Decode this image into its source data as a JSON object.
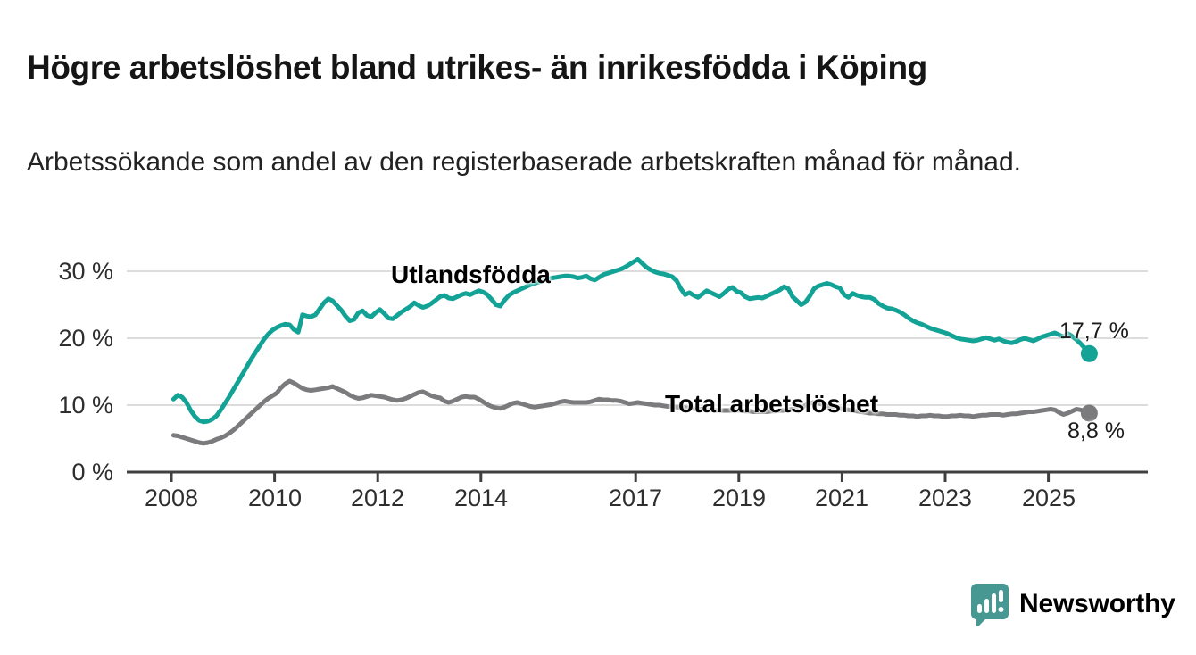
{
  "header": {
    "title": "Högre arbetslöshet bland utrikes- än inrikesfödda i Köping",
    "subtitle": "Arbetssökande som andel av den registerbaserade arbetskraften månad för månad."
  },
  "branding": {
    "logo_text": "Newsworthy",
    "color": "#4a9c96",
    "icon": "speech-bubble-bar-chart"
  },
  "chart_data": {
    "type": "line",
    "title": "Högre arbetslöshet bland utrikes- än inrikesfödda i Köping",
    "x_unit": "month",
    "start": "2008-01",
    "end": "2025-10",
    "grid": "horizontal",
    "y_axis": {
      "min": 0,
      "max": 33,
      "ticks": [
        {
          "label": "0 %",
          "value": 0
        },
        {
          "label": "10 %",
          "value": 10
        },
        {
          "label": "20 %",
          "value": 20
        },
        {
          "label": "30 %",
          "value": 30
        }
      ]
    },
    "x_axis": {
      "ticks": [
        {
          "label": "2008",
          "year": 2008
        },
        {
          "label": "2010",
          "year": 2010
        },
        {
          "label": "2012",
          "year": 2012
        },
        {
          "label": "2014",
          "year": 2014
        },
        {
          "label": "2017",
          "year": 2017
        },
        {
          "label": "2019",
          "year": 2019
        },
        {
          "label": "2021",
          "year": 2021
        },
        {
          "label": "2023",
          "year": 2023
        },
        {
          "label": "2025",
          "year": 2025
        }
      ]
    },
    "series": [
      {
        "name": "Utlandsfödda",
        "color": "#12a296",
        "end_label": "17,7 %",
        "end_value": 17.7,
        "values": [
          10.9,
          11.5,
          11.2,
          10.4,
          9.2,
          8.3,
          7.7,
          7.5,
          7.6,
          7.9,
          8.4,
          9.3,
          10.3,
          11.3,
          12.4,
          13.5,
          14.6,
          15.7,
          16.8,
          17.8,
          18.8,
          19.8,
          20.6,
          21.2,
          21.6,
          21.9,
          22.1,
          22.0,
          21.3,
          20.9,
          23.5,
          23.3,
          23.2,
          23.5,
          24.4,
          25.3,
          25.9,
          25.6,
          24.9,
          24.2,
          23.3,
          22.6,
          22.8,
          23.8,
          24.1,
          23.4,
          23.2,
          23.8,
          24.3,
          23.7,
          23.0,
          22.9,
          23.4,
          23.9,
          24.3,
          24.7,
          25.3,
          24.9,
          24.6,
          24.8,
          25.2,
          25.7,
          26.2,
          26.4,
          26.0,
          25.9,
          26.2,
          26.5,
          26.7,
          26.5,
          26.8,
          27.1,
          26.9,
          26.5,
          25.8,
          25.0,
          24.8,
          25.7,
          26.4,
          26.8,
          27.1,
          27.4,
          27.7,
          28.0,
          28.2,
          28.4,
          28.6,
          28.8,
          29.0,
          29.1,
          29.2,
          29.3,
          29.3,
          29.2,
          29.0,
          29.1,
          29.3,
          28.9,
          28.7,
          29.1,
          29.5,
          29.7,
          29.9,
          30.1,
          30.3,
          30.6,
          31.0,
          31.4,
          31.8,
          31.2,
          30.6,
          30.2,
          29.9,
          29.7,
          29.6,
          29.4,
          29.2,
          28.6,
          27.4,
          26.5,
          26.8,
          26.4,
          26.1,
          26.6,
          27.1,
          26.8,
          26.5,
          26.2,
          26.7,
          27.3,
          27.6,
          27.0,
          26.8,
          26.2,
          25.9,
          26.0,
          26.1,
          26.0,
          26.3,
          26.6,
          26.9,
          27.2,
          27.7,
          27.4,
          26.2,
          25.6,
          25.0,
          25.4,
          26.3,
          27.4,
          27.8,
          28.0,
          28.2,
          28.0,
          27.7,
          27.5,
          26.5,
          26.1,
          26.7,
          26.4,
          26.2,
          26.1,
          26.1,
          25.8,
          25.2,
          24.8,
          24.5,
          24.4,
          24.2,
          23.9,
          23.5,
          23.0,
          22.6,
          22.3,
          22.1,
          21.8,
          21.5,
          21.3,
          21.1,
          20.9,
          20.7,
          20.4,
          20.1,
          19.9,
          19.8,
          19.7,
          19.6,
          19.7,
          19.9,
          20.1,
          19.9,
          19.7,
          19.9,
          19.6,
          19.4,
          19.3,
          19.5,
          19.8,
          20.0,
          19.8,
          19.6,
          19.9,
          20.2,
          20.4,
          20.6,
          20.8,
          20.5,
          20.2,
          20.7,
          20.3,
          19.8,
          19.2,
          18.5,
          17.7
        ]
      },
      {
        "name": "Total arbetslöshet",
        "color": "#7b7b7e",
        "end_label": "8,8 %",
        "end_value": 8.8,
        "values": [
          5.5,
          5.4,
          5.2,
          5.0,
          4.8,
          4.6,
          4.4,
          4.3,
          4.4,
          4.6,
          4.9,
          5.1,
          5.4,
          5.8,
          6.3,
          6.9,
          7.5,
          8.1,
          8.7,
          9.3,
          9.9,
          10.5,
          11.0,
          11.4,
          11.8,
          12.6,
          13.2,
          13.6,
          13.3,
          12.9,
          12.5,
          12.3,
          12.2,
          12.3,
          12.4,
          12.5,
          12.6,
          12.8,
          12.5,
          12.2,
          11.9,
          11.5,
          11.2,
          11.0,
          11.1,
          11.3,
          11.5,
          11.4,
          11.3,
          11.2,
          11.0,
          10.8,
          10.7,
          10.8,
          11.0,
          11.3,
          11.6,
          11.9,
          12.0,
          11.7,
          11.4,
          11.2,
          11.1,
          10.6,
          10.4,
          10.6,
          10.9,
          11.2,
          11.3,
          11.2,
          11.2,
          10.9,
          10.5,
          10.1,
          9.8,
          9.6,
          9.5,
          9.7,
          10.0,
          10.3,
          10.4,
          10.2,
          10.0,
          9.8,
          9.7,
          9.8,
          9.9,
          10.0,
          10.1,
          10.3,
          10.5,
          10.6,
          10.5,
          10.4,
          10.4,
          10.4,
          10.4,
          10.5,
          10.7,
          10.9,
          10.8,
          10.8,
          10.7,
          10.7,
          10.6,
          10.4,
          10.2,
          10.3,
          10.4,
          10.3,
          10.2,
          10.1,
          10.0,
          10.0,
          9.9,
          9.8,
          9.8,
          9.7,
          9.7,
          9.6,
          9.6,
          9.5,
          9.4,
          9.4,
          9.3,
          9.3,
          9.2,
          9.2,
          9.2,
          9.2,
          9.2,
          9.2,
          9.2,
          9.1,
          9.1,
          9.0,
          9.0,
          9.0,
          9.0,
          9.1,
          9.1,
          9.2,
          9.2,
          9.3,
          9.4,
          9.4,
          9.5,
          10.0,
          10.3,
          10.4,
          10.3,
          10.1,
          9.9,
          9.7,
          9.6,
          9.5,
          9.4,
          9.3,
          9.2,
          9.1,
          9.0,
          8.9,
          8.8,
          8.8,
          8.7,
          8.7,
          8.6,
          8.6,
          8.6,
          8.5,
          8.5,
          8.4,
          8.4,
          8.3,
          8.4,
          8.4,
          8.5,
          8.4,
          8.4,
          8.3,
          8.3,
          8.4,
          8.4,
          8.5,
          8.4,
          8.4,
          8.3,
          8.4,
          8.5,
          8.5,
          8.6,
          8.6,
          8.6,
          8.5,
          8.6,
          8.7,
          8.7,
          8.8,
          8.9,
          9.0,
          9.0,
          9.1,
          9.2,
          9.3,
          9.4,
          9.3,
          8.9,
          8.6,
          8.8,
          9.1,
          9.4,
          9.3,
          9.0,
          8.8
        ]
      }
    ]
  }
}
